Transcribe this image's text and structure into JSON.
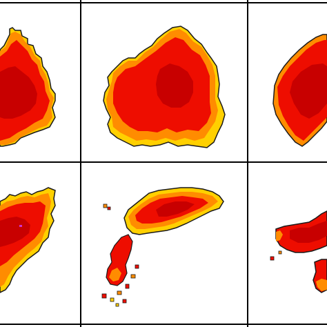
{
  "figure": {
    "rows": 2,
    "cols": 3,
    "colors": {
      "background": "#ffffff",
      "grid_line": "#000000",
      "outline": "#1a1a1a",
      "dark_red": "#c80000",
      "red": "#ee0d00",
      "orange": "#ff8c00",
      "yellow": "#ffd000"
    },
    "panels": [
      {
        "id": "r1c1"
      },
      {
        "id": "r1c2"
      },
      {
        "id": "r1c3"
      },
      {
        "id": "r2c1"
      },
      {
        "id": "r2c2"
      },
      {
        "id": "r2c3"
      }
    ]
  }
}
